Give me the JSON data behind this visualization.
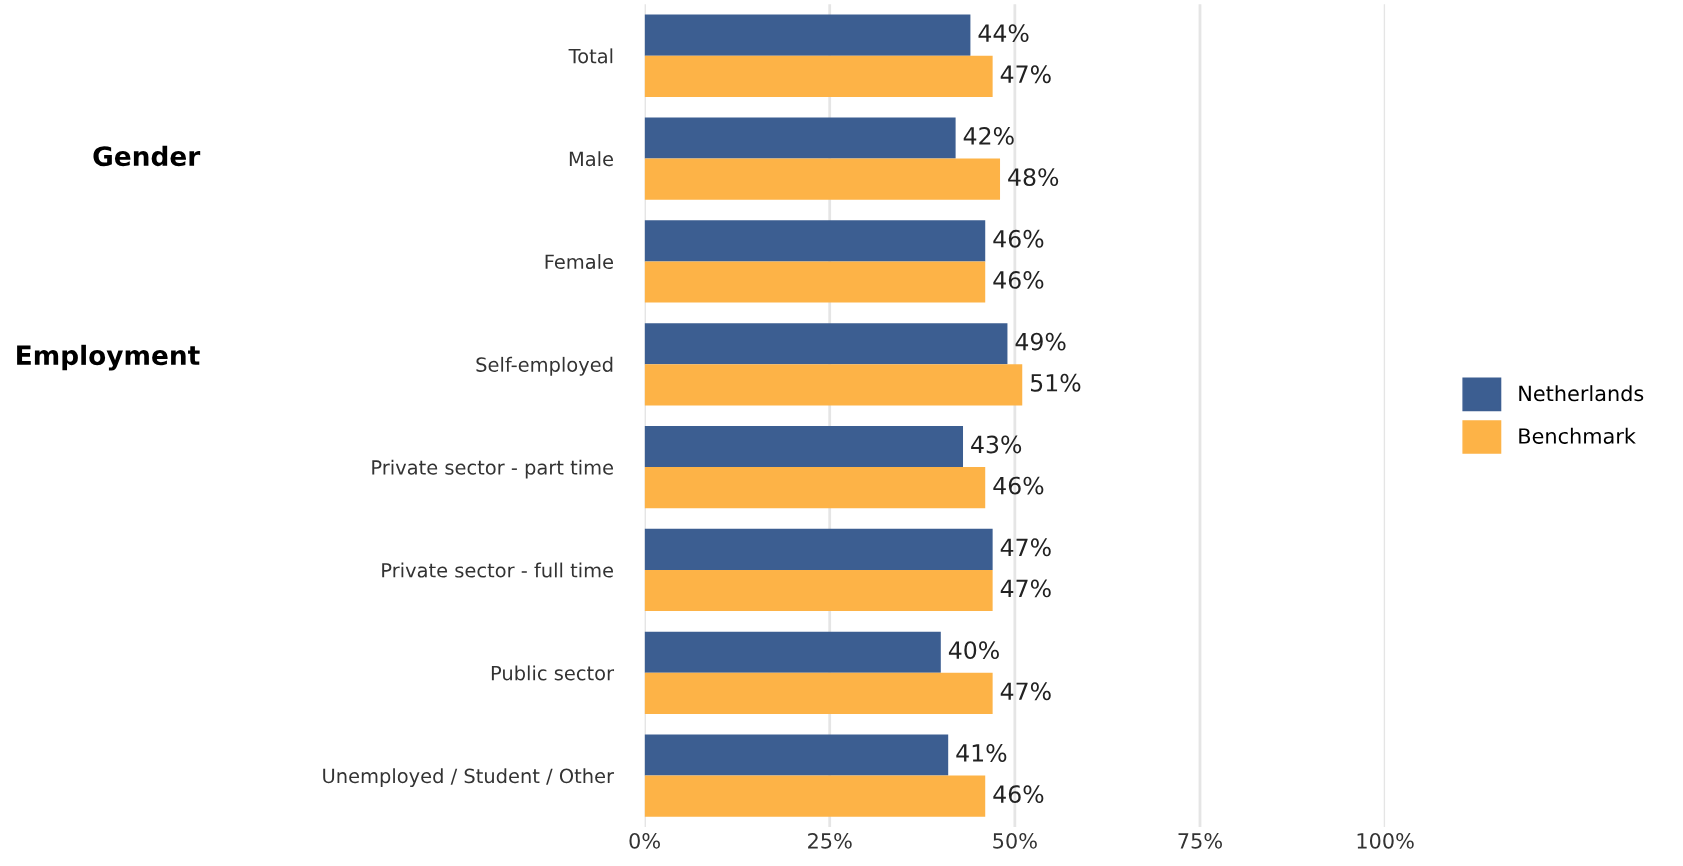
{
  "chart_data": {
    "type": "bar",
    "orientation": "horizontal",
    "categories": [
      "Total",
      "Male",
      "Female",
      "Self-employed",
      "Private sector - part time",
      "Private sector - full time",
      "Public sector",
      "Unemployed / Student / Other"
    ],
    "series": [
      {
        "name": "Netherlands",
        "color": "#3c5e91",
        "values": [
          44,
          42,
          46,
          49,
          43,
          47,
          40,
          41
        ],
        "value_labels": [
          "44%",
          "42%",
          "46%",
          "49%",
          "43%",
          "47%",
          "40%",
          "41%"
        ]
      },
      {
        "name": "Benchmark",
        "color": "#fdb347",
        "values": [
          47,
          48,
          46,
          51,
          46,
          47,
          47,
          46
        ],
        "value_labels": [
          "47%",
          "48%",
          "46%",
          "51%",
          "46%",
          "47%",
          "47%",
          "46%"
        ]
      }
    ],
    "xlim": [
      0,
      100
    ],
    "xticks": [
      {
        "value": 0,
        "label": "0%"
      },
      {
        "value": 25,
        "label": "25%"
      },
      {
        "value": 50,
        "label": "50%"
      },
      {
        "value": 75,
        "label": "75%"
      },
      {
        "value": 100,
        "label": "100%"
      }
    ],
    "grid": "x",
    "legend": "right",
    "annotations": [
      "Gender",
      "Employment"
    ]
  }
}
